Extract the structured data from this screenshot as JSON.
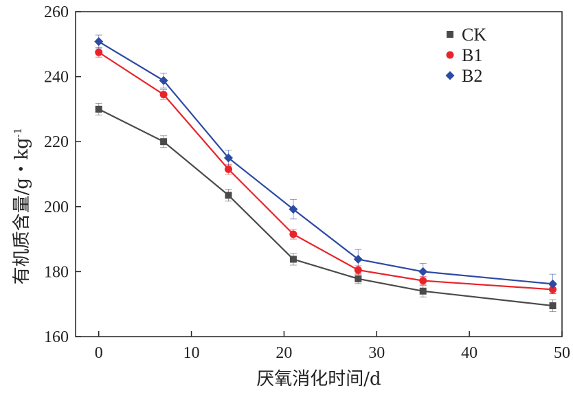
{
  "chart_data": {
    "type": "line",
    "xlabel": "厌氧消化时间/d",
    "ylabel": "有机质含量/g・kg",
    "ylabel_superscript": "-1",
    "xlim": [
      -2.5,
      50
    ],
    "ylim": [
      160,
      260
    ],
    "xticks": [
      0,
      10,
      20,
      30,
      40,
      50
    ],
    "yticks": [
      160,
      180,
      200,
      220,
      240,
      260
    ],
    "x": [
      0,
      7,
      14,
      21,
      28,
      35,
      49
    ],
    "series": [
      {
        "name": "CK",
        "marker": "square",
        "color": "#4a4a4a",
        "values": [
          230,
          220,
          203.5,
          183.8,
          177.8,
          174,
          169.5
        ],
        "errors": [
          1.8,
          1.8,
          1.8,
          1.8,
          1.5,
          1.8,
          1.8
        ]
      },
      {
        "name": "B1",
        "marker": "circle",
        "color": "#e8242a",
        "values": [
          247.5,
          234.5,
          211.5,
          191.5,
          180.5,
          177.2,
          174.5
        ],
        "errors": [
          1.5,
          1.5,
          1.5,
          1.5,
          1.3,
          1.3,
          1.3
        ]
      },
      {
        "name": "B2",
        "marker": "diamond",
        "color": "#2b4aa3",
        "values": [
          250.8,
          238.8,
          215,
          199.2,
          183.8,
          180,
          176.2
        ],
        "errors": [
          2,
          2.3,
          2.4,
          3,
          3,
          2.5,
          3
        ]
      }
    ],
    "legend_position": "top-right",
    "grid": false
  }
}
